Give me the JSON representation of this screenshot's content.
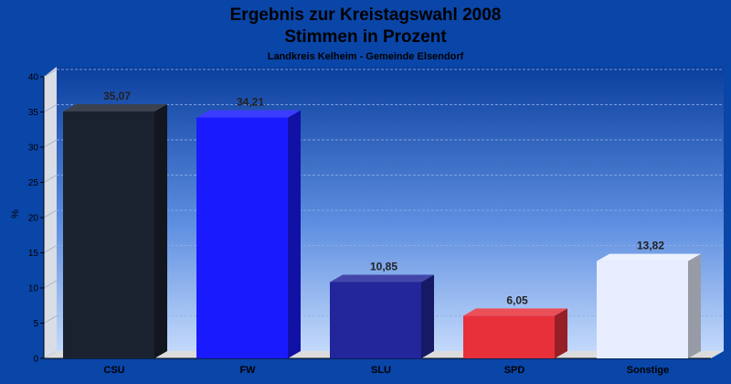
{
  "chart_data": {
    "type": "bar",
    "title": "Ergebnis zur Kreistagswahl 2008",
    "title_line2": "Stimmen in Prozent",
    "subtitle": "Landkreis Kelheim - Gemeinde Elsendorf",
    "ylabel": "%",
    "xlabel": "",
    "ylim": [
      0,
      40
    ],
    "yticks": [
      "0",
      "5",
      "10",
      "15",
      "20",
      "25",
      "30",
      "35",
      "40"
    ],
    "grid": true,
    "categories": [
      "CSU",
      "FW",
      "SLU",
      "SPD",
      "Sonstige"
    ],
    "values": [
      35.07,
      34.21,
      10.85,
      6.05,
      13.82
    ],
    "value_labels": [
      "35,07",
      "34,21",
      "10,85",
      "6,05",
      "13,82"
    ],
    "colors": [
      "#1a2230",
      "#1a1aff",
      "#22269a",
      "#e8303a",
      "#e8eeff"
    ]
  }
}
